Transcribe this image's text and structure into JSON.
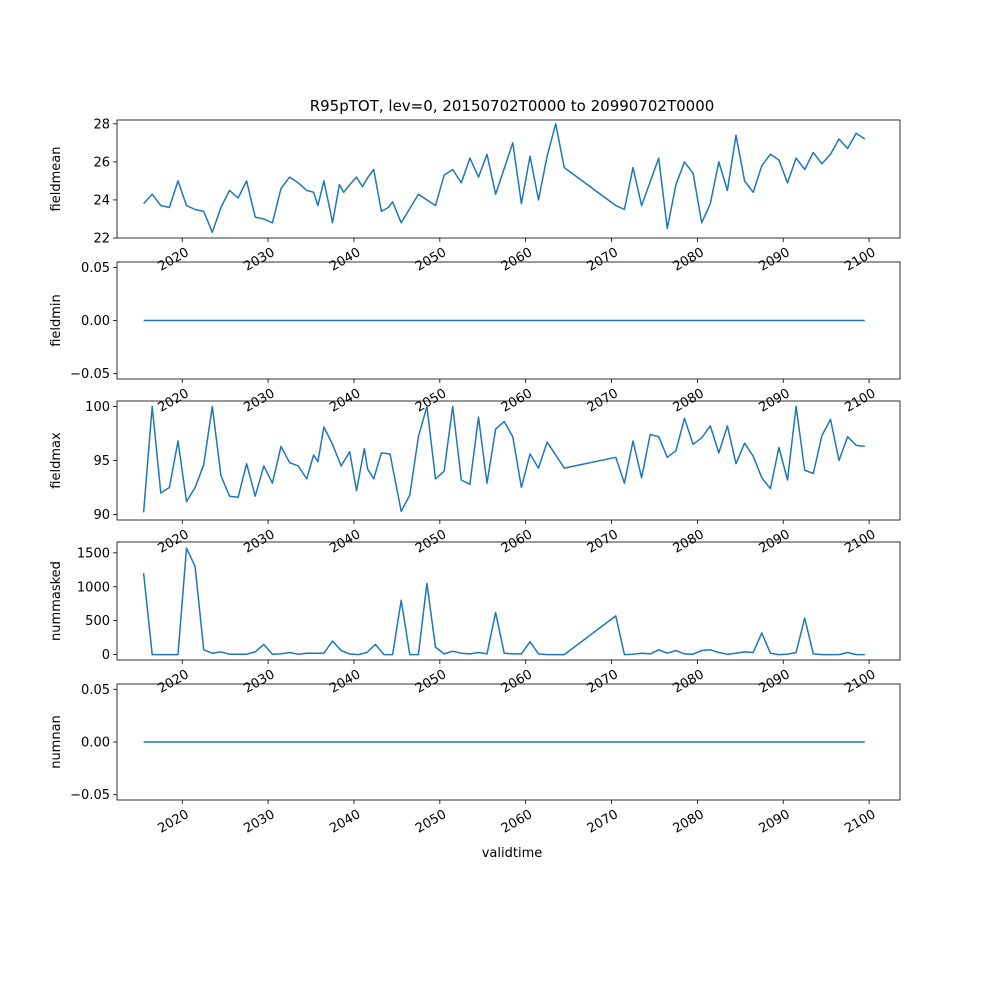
{
  "figure": {
    "title": "R95pTOT, lev=0, 20150702T0000 to 20990702T0000",
    "xlabel": "validtime"
  },
  "colors": {
    "line": "#1f77b4",
    "axis": "#000000",
    "background": "#ffffff"
  },
  "chart_data": [
    {
      "type": "line",
      "ylabel": "fieldmean",
      "xlim": [
        2012.4,
        2103.6
      ],
      "ylim": [
        22.0,
        28.2
      ],
      "yticks": [
        22,
        24,
        26,
        28
      ],
      "ytick_labels": [
        "22",
        "24",
        "26",
        "28"
      ],
      "xticks": [
        2020,
        2030,
        2040,
        2050,
        2060,
        2070,
        2080,
        2090,
        2100
      ],
      "xtick_labels": [
        "2020",
        "2030",
        "2040",
        "2050",
        "2060",
        "2070",
        "2080",
        "2090",
        "2100"
      ],
      "grid": false,
      "x": [
        2015.5,
        2016.5,
        2017.5,
        2018.5,
        2019.5,
        2020.5,
        2021.5,
        2022.5,
        2023.5,
        2024.5,
        2025.5,
        2026.5,
        2027.5,
        2028.5,
        2029.5,
        2030.5,
        2031.5,
        2032.5,
        2033.5,
        2034.5,
        2035.3,
        2035.8,
        2036.5,
        2037.2,
        2037.5,
        2038.3,
        2038.8,
        2039.5,
        2040.3,
        2041.0,
        2041.5,
        2042.3,
        2043.2,
        2044.0,
        2044.5,
        2045.5,
        2047.5,
        2049.5,
        2050.5,
        2051.5,
        2052.5,
        2053.5,
        2054.5,
        2055.5,
        2056.5,
        2058.5,
        2059.5,
        2060.5,
        2061.5,
        2062.5,
        2063.5,
        2064.5,
        2070.5,
        2071.5,
        2072.5,
        2073.5,
        2075.5,
        2076.5,
        2077.5,
        2078.5,
        2079.5,
        2080.5,
        2081.5,
        2082.5,
        2083.5,
        2084.5,
        2085.5,
        2086.5,
        2087.5,
        2088.5,
        2089.5,
        2090.5,
        2091.5,
        2092.5,
        2093.5,
        2094.5,
        2095.5,
        2096.5,
        2097.5,
        2098.5,
        2099.5
      ],
      "y": [
        23.8,
        24.3,
        23.7,
        23.6,
        25.0,
        23.7,
        23.5,
        23.4,
        22.3,
        23.6,
        24.5,
        24.1,
        25.0,
        23.1,
        23.0,
        22.8,
        24.6,
        25.2,
        24.9,
        24.5,
        24.4,
        23.7,
        25.0,
        23.5,
        22.8,
        24.8,
        24.4,
        24.8,
        25.2,
        24.7,
        25.1,
        25.6,
        23.4,
        23.6,
        23.9,
        22.8,
        24.3,
        23.7,
        25.3,
        25.6,
        24.9,
        26.2,
        25.2,
        26.4,
        24.3,
        27.0,
        23.8,
        26.3,
        24.0,
        26.3,
        28.0,
        25.7,
        23.7,
        23.5,
        25.7,
        23.7,
        26.2,
        22.5,
        24.8,
        26.0,
        25.4,
        22.8,
        23.8,
        26.0,
        24.5,
        27.4,
        25.0,
        24.4,
        25.8,
        26.4,
        26.1,
        24.9,
        26.2,
        25.6,
        26.5,
        25.9,
        26.4,
        27.2,
        26.7,
        27.5,
        27.2
      ]
    },
    {
      "type": "line",
      "ylabel": "fieldmin",
      "xlim": [
        2012.4,
        2103.6
      ],
      "ylim": [
        -0.055,
        0.055
      ],
      "yticks": [
        -0.05,
        0.0,
        0.05
      ],
      "ytick_labels": [
        "−0.05",
        "0.00",
        "0.05"
      ],
      "xticks": [
        2020,
        2030,
        2040,
        2050,
        2060,
        2070,
        2080,
        2090,
        2100
      ],
      "xtick_labels": [
        "2020",
        "2030",
        "2040",
        "2050",
        "2060",
        "2070",
        "2080",
        "2090",
        "2100"
      ],
      "grid": false,
      "x": [
        2015.5,
        2099.5
      ],
      "y": [
        0.0,
        0.0
      ]
    },
    {
      "type": "line",
      "ylabel": "fieldmax",
      "xlim": [
        2012.4,
        2103.6
      ],
      "ylim": [
        89.5,
        100.5
      ],
      "yticks": [
        90,
        95,
        100
      ],
      "ytick_labels": [
        "90",
        "95",
        "100"
      ],
      "xticks": [
        2020,
        2030,
        2040,
        2050,
        2060,
        2070,
        2080,
        2090,
        2100
      ],
      "xtick_labels": [
        "2020",
        "2030",
        "2040",
        "2050",
        "2060",
        "2070",
        "2080",
        "2090",
        "2100"
      ],
      "grid": false,
      "x": [
        2015.5,
        2016.5,
        2017.5,
        2018.5,
        2019.5,
        2020.5,
        2021.5,
        2022.5,
        2023.5,
        2024.5,
        2025.5,
        2026.5,
        2027.5,
        2028.5,
        2029.5,
        2030.5,
        2031.5,
        2032.5,
        2033.5,
        2034.5,
        2035.3,
        2035.8,
        2036.5,
        2037.5,
        2038.5,
        2039.5,
        2040.3,
        2041.2,
        2041.6,
        2042.3,
        2043.2,
        2044.2,
        2045.5,
        2046.5,
        2047.5,
        2048.5,
        2049.5,
        2050.5,
        2051.5,
        2052.5,
        2053.5,
        2054.5,
        2055.5,
        2056.5,
        2057.5,
        2058.5,
        2059.5,
        2060.5,
        2061.5,
        2062.5,
        2064.5,
        2070.5,
        2071.5,
        2072.5,
        2073.5,
        2074.5,
        2075.5,
        2076.5,
        2077.5,
        2078.5,
        2079.5,
        2080.5,
        2081.5,
        2082.5,
        2083.5,
        2084.5,
        2085.5,
        2086.5,
        2087.5,
        2088.5,
        2089.5,
        2090.5,
        2091.5,
        2092.5,
        2093.5,
        2094.5,
        2095.5,
        2096.5,
        2097.5,
        2098.5,
        2099.5
      ],
      "y": [
        90.2,
        100.0,
        92.0,
        92.5,
        96.8,
        91.2,
        92.5,
        94.6,
        100.0,
        93.6,
        91.7,
        91.6,
        94.7,
        91.7,
        94.5,
        92.9,
        96.3,
        94.8,
        94.5,
        93.3,
        95.5,
        94.9,
        98.1,
        96.5,
        94.5,
        95.8,
        92.2,
        96.1,
        94.2,
        93.3,
        95.7,
        95.6,
        90.3,
        91.8,
        97.2,
        100.0,
        93.3,
        94.0,
        100.0,
        93.2,
        92.8,
        99.0,
        92.9,
        97.9,
        98.6,
        97.2,
        92.5,
        95.6,
        94.3,
        96.7,
        94.3,
        95.3,
        92.9,
        96.8,
        93.4,
        97.4,
        97.2,
        95.3,
        95.9,
        98.9,
        96.5,
        97.1,
        98.2,
        95.7,
        98.2,
        94.7,
        96.6,
        95.4,
        93.4,
        92.4,
        96.2,
        93.2,
        100.0,
        94.1,
        93.8,
        97.3,
        98.8,
        95.0,
        97.2,
        96.4,
        96.3
      ]
    },
    {
      "type": "line",
      "ylabel": "nummasked",
      "xlim": [
        2012.4,
        2103.6
      ],
      "ylim": [
        -80,
        1660
      ],
      "yticks": [
        0,
        500,
        1000,
        1500
      ],
      "ytick_labels": [
        "0",
        "500",
        "1000",
        "1500"
      ],
      "xticks": [
        2020,
        2030,
        2040,
        2050,
        2060,
        2070,
        2080,
        2090,
        2100
      ],
      "xtick_labels": [
        "2020",
        "2030",
        "2040",
        "2050",
        "2060",
        "2070",
        "2080",
        "2090",
        "2100"
      ],
      "grid": false,
      "x": [
        2015.5,
        2016.5,
        2017.5,
        2018.5,
        2019.5,
        2020.5,
        2021.5,
        2022.5,
        2023.5,
        2024.5,
        2025.5,
        2026.5,
        2027.5,
        2028.5,
        2029.5,
        2030.5,
        2031.5,
        2032.5,
        2033.5,
        2034.5,
        2035.5,
        2036.5,
        2037.5,
        2038.5,
        2039.5,
        2040.5,
        2041.5,
        2042.5,
        2043.5,
        2044.5,
        2045.5,
        2046.5,
        2047.5,
        2048.5,
        2049.5,
        2050.5,
        2051.5,
        2052.5,
        2053.5,
        2054.5,
        2055.5,
        2056.5,
        2057.5,
        2058.5,
        2059.5,
        2060.5,
        2061.5,
        2062.5,
        2064.5,
        2070.5,
        2071.5,
        2072.5,
        2073.5,
        2074.5,
        2075.5,
        2076.5,
        2077.5,
        2078.5,
        2079.5,
        2080.5,
        2081.5,
        2082.5,
        2083.5,
        2084.5,
        2085.5,
        2086.5,
        2087.5,
        2088.5,
        2089.5,
        2090.5,
        2091.5,
        2092.5,
        2093.5,
        2094.5,
        2095.5,
        2096.5,
        2097.5,
        2098.5,
        2099.5
      ],
      "y": [
        1200,
        0,
        0,
        0,
        0,
        1570,
        1300,
        70,
        20,
        40,
        5,
        5,
        5,
        40,
        150,
        5,
        10,
        30,
        5,
        20,
        20,
        20,
        200,
        60,
        10,
        0,
        30,
        150,
        0,
        0,
        800,
        0,
        0,
        1050,
        110,
        10,
        50,
        20,
        10,
        30,
        10,
        620,
        20,
        10,
        10,
        190,
        10,
        0,
        0,
        570,
        0,
        5,
        20,
        10,
        70,
        20,
        60,
        10,
        5,
        60,
        70,
        30,
        5,
        20,
        40,
        30,
        320,
        20,
        0,
        5,
        30,
        540,
        10,
        0,
        0,
        0,
        30,
        0,
        0
      ]
    },
    {
      "type": "line",
      "ylabel": "numnan",
      "xlim": [
        2012.4,
        2103.6
      ],
      "ylim": [
        -0.055,
        0.055
      ],
      "yticks": [
        -0.05,
        0.0,
        0.05
      ],
      "ytick_labels": [
        "−0.05",
        "0.00",
        "0.05"
      ],
      "xticks": [
        2020,
        2030,
        2040,
        2050,
        2060,
        2070,
        2080,
        2090,
        2100
      ],
      "xtick_labels": [
        "2020",
        "2030",
        "2040",
        "2050",
        "2060",
        "2070",
        "2080",
        "2090",
        "2100"
      ],
      "grid": false,
      "x": [
        2015.5,
        2099.5
      ],
      "y": [
        0.0,
        0.0
      ]
    }
  ]
}
